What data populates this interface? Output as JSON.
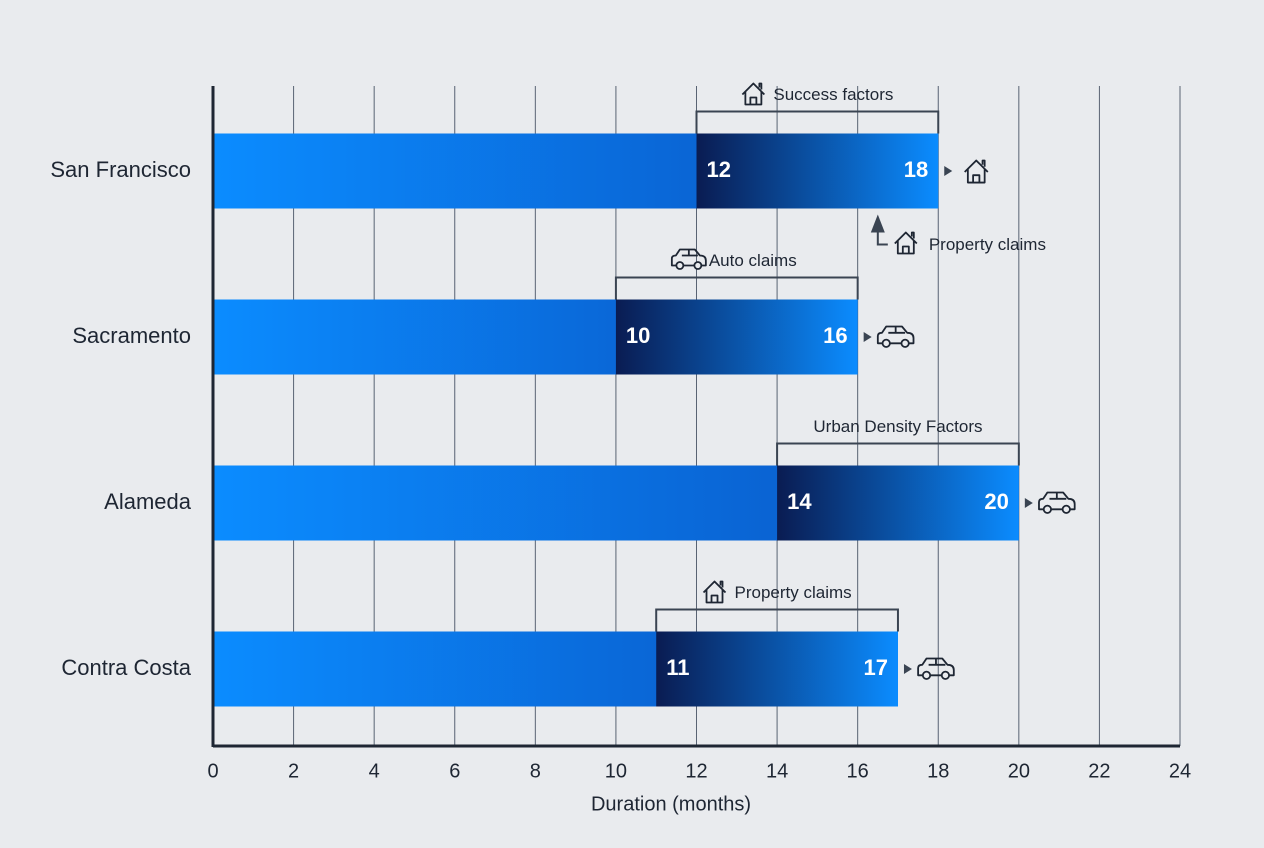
{
  "chart_data": {
    "type": "bar",
    "orientation": "horizontal",
    "categories": [
      "San Francisco",
      "Sacramento",
      "Alameda",
      "Contra Costa"
    ],
    "starts": [
      12,
      10,
      14,
      11
    ],
    "values": [
      18,
      16,
      20,
      17
    ],
    "end_icons": [
      "house",
      "car",
      "car",
      "car"
    ],
    "annotations": [
      {
        "text": "Success factors",
        "icon": "house"
      },
      {
        "text": "Auto claims",
        "icon": "car"
      },
      {
        "text": "Urban Density Factors",
        "icon": null
      },
      {
        "text": "Property claims",
        "icon": "house"
      }
    ],
    "callout": {
      "text": "Property claims",
      "x": 16.5,
      "category": 0,
      "icon": "house"
    },
    "xlabel": "Duration (months)",
    "xlim": [
      0,
      24
    ],
    "xticks": [
      0,
      2,
      4,
      6,
      8,
      10,
      12,
      14,
      16,
      18,
      20,
      22,
      24
    ],
    "grid": true,
    "color": "#0b8cff",
    "dark_color": "#0a1c52"
  }
}
